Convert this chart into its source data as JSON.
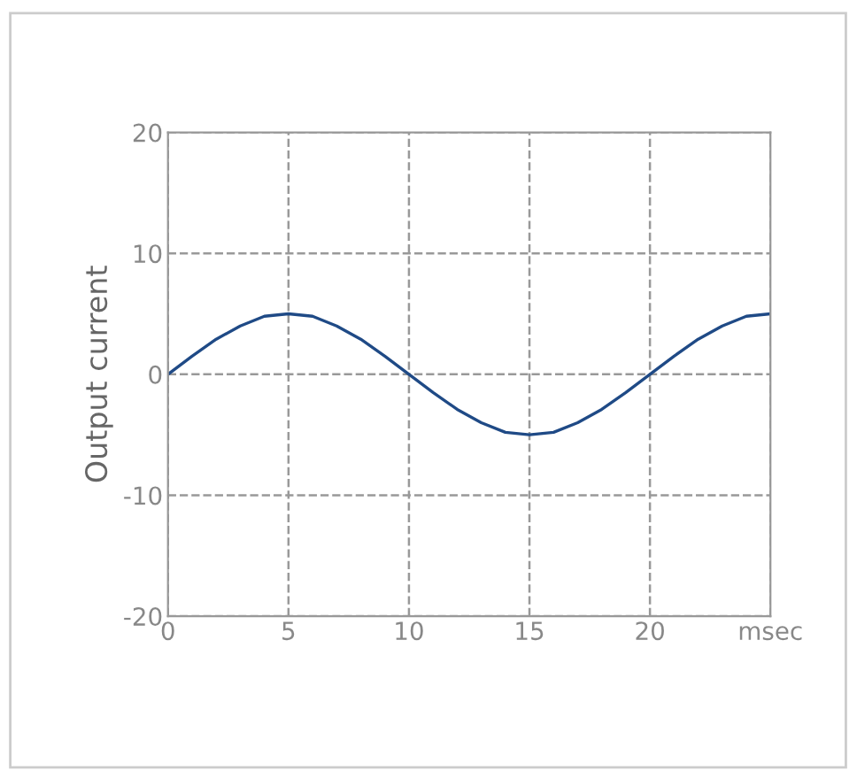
{
  "chart_data": {
    "type": "line",
    "ylabel": "Output current",
    "x": [
      0,
      1,
      2,
      3,
      4,
      5,
      6,
      7,
      8,
      9,
      10,
      11,
      12,
      13,
      14,
      15,
      16,
      17,
      18,
      19,
      20,
      21,
      22,
      23,
      24,
      25
    ],
    "series": [
      {
        "color": "#1f4a86",
        "values": [
          0,
          1.5,
          2.9,
          4.0,
          4.8,
          5,
          4.8,
          4.0,
          2.9,
          1.5,
          0,
          -1.5,
          -2.9,
          -4.0,
          -4.8,
          -5,
          -4.8,
          -4.0,
          -2.9,
          -1.5,
          0,
          1.5,
          2.9,
          4.0,
          4.8,
          5
        ]
      }
    ],
    "xlim": [
      0,
      25
    ],
    "xticks": [
      0,
      5,
      10,
      15,
      20,
      {
        "value": 25,
        "label": "msec"
      }
    ],
    "ylim": [
      -20,
      20
    ],
    "yticks": [
      -20,
      -10,
      0,
      10,
      20
    ],
    "grid": true,
    "line_style": "solid",
    "marker": "none"
  }
}
